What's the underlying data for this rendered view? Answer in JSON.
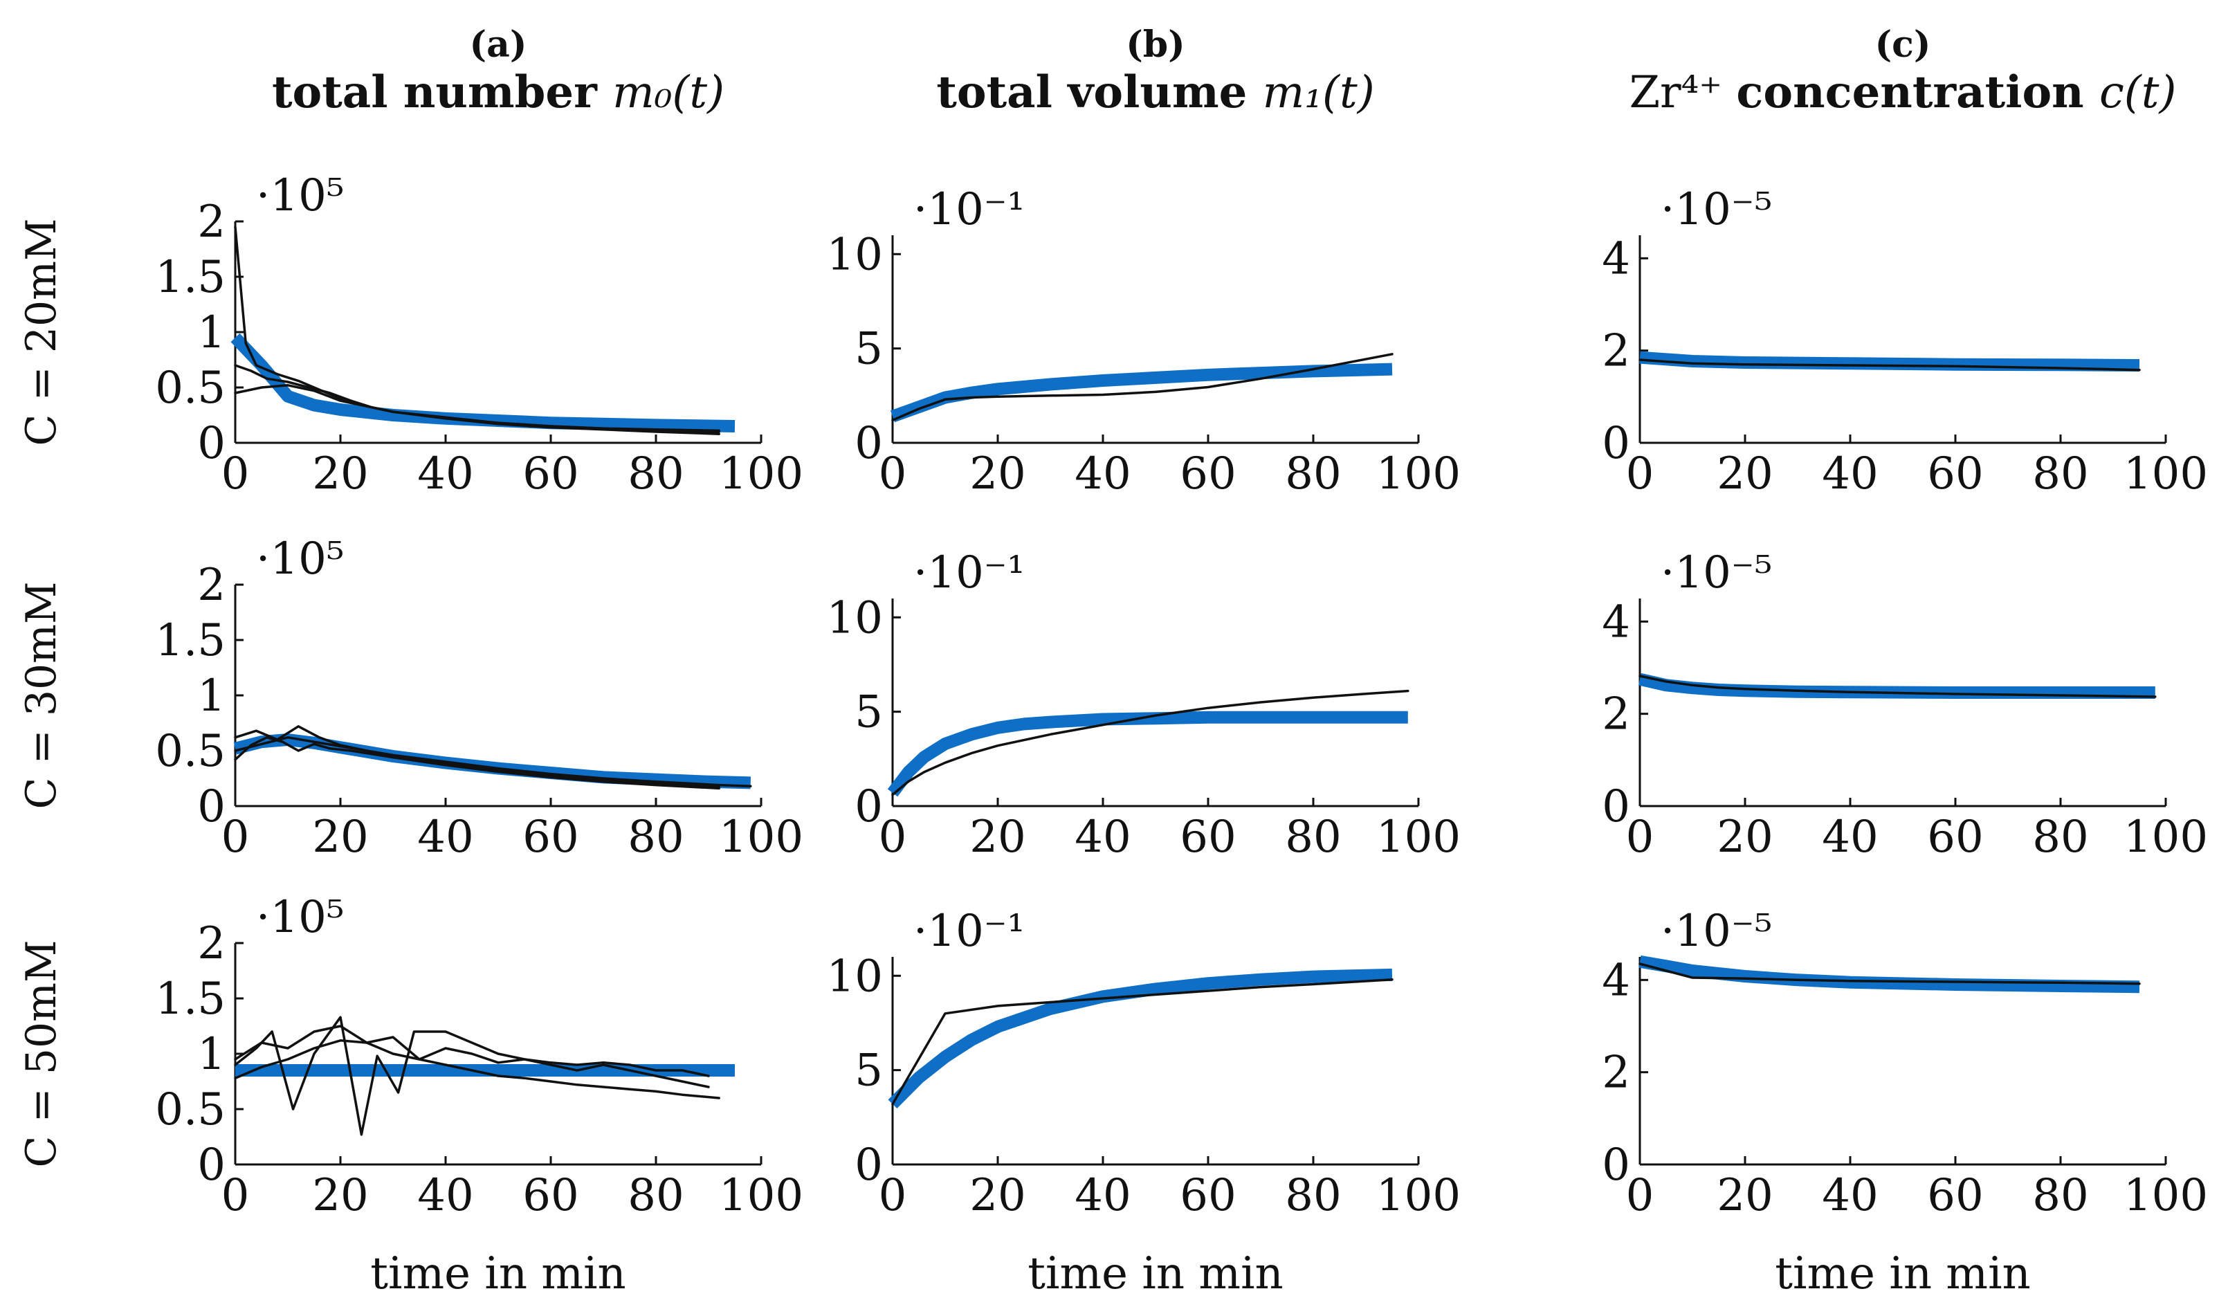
{
  "columns": [
    {
      "letter": "(a)",
      "title_bold": "total number",
      "title_math": "m₀(t)"
    },
    {
      "letter": "(b)",
      "title_bold": "total volume",
      "title_math": "m₁(t)"
    },
    {
      "letter": "(c)",
      "title_pre": "Zr⁴⁺",
      "title_bold": "concentration",
      "title_math": "c(t)"
    }
  ],
  "rows": [
    {
      "label": "C = 20mM"
    },
    {
      "label": "C = 30mM"
    },
    {
      "label": "C = 50mM"
    }
  ],
  "xlabel": "time in min",
  "colors": {
    "fit": "#0f6fc6",
    "measured": "#111111"
  },
  "chart_data": [
    {
      "type": "line",
      "title": "total number m₀(t), C = 20mM",
      "xlabel": "time in min",
      "ylabel": "",
      "exponent": "·10⁵",
      "xlim": [
        0,
        100
      ],
      "ylim": [
        0,
        2
      ],
      "xticks": [
        0,
        20,
        40,
        60,
        80,
        100
      ],
      "yticks": [
        0,
        0.5,
        1,
        1.5,
        2
      ],
      "ytick_labels": [
        "0",
        "0.5",
        "1",
        "1.5",
        "2"
      ],
      "series": [
        {
          "name": "fit",
          "role": "fit",
          "x": [
            0,
            5,
            10,
            15,
            20,
            30,
            40,
            50,
            60,
            70,
            80,
            95
          ],
          "y": [
            0.95,
            0.7,
            0.42,
            0.34,
            0.3,
            0.25,
            0.22,
            0.2,
            0.18,
            0.17,
            0.16,
            0.15
          ]
        },
        {
          "name": "measurement 1",
          "role": "measured",
          "x": [
            0,
            2,
            4,
            8,
            12,
            16,
            20,
            25,
            30,
            40,
            50,
            60,
            70,
            80,
            92
          ],
          "y": [
            1.95,
            0.9,
            0.7,
            0.62,
            0.56,
            0.48,
            0.4,
            0.33,
            0.28,
            0.22,
            0.18,
            0.15,
            0.13,
            0.11,
            0.1
          ]
        },
        {
          "name": "measurement 2",
          "role": "measured",
          "x": [
            0,
            3,
            6,
            10,
            14,
            18,
            22,
            26,
            30,
            40,
            50,
            60,
            70,
            80,
            92
          ],
          "y": [
            0.7,
            0.65,
            0.58,
            0.55,
            0.5,
            0.45,
            0.38,
            0.32,
            0.28,
            0.22,
            0.17,
            0.14,
            0.12,
            0.1,
            0.08
          ]
        },
        {
          "name": "measurement 3",
          "role": "measured",
          "x": [
            0,
            5,
            10,
            15,
            20,
            25,
            30,
            40,
            50,
            60,
            70,
            80,
            92
          ],
          "y": [
            0.45,
            0.5,
            0.52,
            0.47,
            0.38,
            0.33,
            0.28,
            0.23,
            0.18,
            0.15,
            0.13,
            0.12,
            0.11
          ]
        }
      ]
    },
    {
      "type": "line",
      "title": "total volume m₁(t), C = 20mM",
      "xlabel": "time in min",
      "ylabel": "",
      "exponent": "·10⁻¹",
      "xlim": [
        0,
        100
      ],
      "ylim": [
        0,
        11
      ],
      "xticks": [
        0,
        20,
        40,
        60,
        80,
        100
      ],
      "yticks": [
        0,
        5,
        10
      ],
      "ytick_labels": [
        "0",
        "5",
        "10"
      ],
      "series": [
        {
          "name": "fit",
          "role": "fit",
          "x": [
            0,
            5,
            10,
            15,
            20,
            30,
            40,
            50,
            60,
            70,
            80,
            95
          ],
          "y": [
            1.4,
            1.9,
            2.4,
            2.65,
            2.85,
            3.1,
            3.3,
            3.45,
            3.6,
            3.7,
            3.8,
            3.9
          ]
        },
        {
          "name": "measurement",
          "role": "measured",
          "x": [
            0,
            5,
            10,
            15,
            20,
            30,
            40,
            50,
            60,
            70,
            80,
            95
          ],
          "y": [
            1.2,
            1.8,
            2.3,
            2.4,
            2.45,
            2.5,
            2.55,
            2.7,
            2.95,
            3.4,
            3.9,
            4.7
          ]
        }
      ]
    },
    {
      "type": "line",
      "title": "Zr⁴⁺ concentration c(t), C = 20mM",
      "xlabel": "time in min",
      "ylabel": "",
      "exponent": "·10⁻⁵",
      "xlim": [
        0,
        100
      ],
      "ylim": [
        0,
        4.5
      ],
      "xticks": [
        0,
        20,
        40,
        60,
        80,
        100
      ],
      "yticks": [
        0,
        2,
        4
      ],
      "ytick_labels": [
        "0",
        "2",
        "4"
      ],
      "series": [
        {
          "name": "fit",
          "role": "fit",
          "x": [
            0,
            10,
            20,
            40,
            60,
            80,
            95
          ],
          "y": [
            1.85,
            1.77,
            1.74,
            1.72,
            1.7,
            1.69,
            1.68
          ]
        },
        {
          "name": "measurement",
          "role": "measured",
          "x": [
            0,
            10,
            20,
            40,
            60,
            80,
            95
          ],
          "y": [
            1.8,
            1.72,
            1.7,
            1.68,
            1.66,
            1.62,
            1.58
          ]
        }
      ]
    },
    {
      "type": "line",
      "title": "total number m₀(t), C = 30mM",
      "xlabel": "time in min",
      "ylabel": "",
      "exponent": "·10⁵",
      "xlim": [
        0,
        100
      ],
      "ylim": [
        0,
        2
      ],
      "xticks": [
        0,
        20,
        40,
        60,
        80,
        100
      ],
      "yticks": [
        0,
        0.5,
        1,
        1.5,
        2
      ],
      "ytick_labels": [
        "0",
        "0.5",
        "1",
        "1.5",
        "2"
      ],
      "series": [
        {
          "name": "fit",
          "role": "fit",
          "x": [
            0,
            5,
            10,
            15,
            20,
            30,
            40,
            50,
            60,
            70,
            80,
            90,
            98
          ],
          "y": [
            0.52,
            0.58,
            0.6,
            0.57,
            0.53,
            0.45,
            0.39,
            0.34,
            0.3,
            0.26,
            0.24,
            0.22,
            0.21
          ]
        },
        {
          "name": "measurement 1",
          "role": "measured",
          "x": [
            0,
            4,
            8,
            12,
            16,
            20,
            25,
            30,
            40,
            50,
            60,
            70,
            80,
            92
          ],
          "y": [
            0.62,
            0.68,
            0.6,
            0.72,
            0.62,
            0.55,
            0.5,
            0.45,
            0.38,
            0.32,
            0.27,
            0.23,
            0.2,
            0.17
          ]
        },
        {
          "name": "measurement 2",
          "role": "measured",
          "x": [
            0,
            3,
            6,
            9,
            12,
            15,
            18,
            22,
            26,
            30,
            40,
            50,
            60,
            70,
            80,
            92
          ],
          "y": [
            0.42,
            0.55,
            0.62,
            0.58,
            0.5,
            0.56,
            0.52,
            0.5,
            0.47,
            0.44,
            0.37,
            0.31,
            0.26,
            0.22,
            0.19,
            0.16
          ]
        },
        {
          "name": "measurement 3",
          "role": "measured",
          "x": [
            0,
            5,
            10,
            15,
            20,
            30,
            40,
            50,
            60,
            70,
            80,
            92,
            98
          ],
          "y": [
            0.5,
            0.56,
            0.62,
            0.58,
            0.54,
            0.46,
            0.4,
            0.34,
            0.29,
            0.25,
            0.22,
            0.19,
            0.18
          ]
        }
      ]
    },
    {
      "type": "line",
      "title": "total volume m₁(t), C = 30mM",
      "xlabel": "time in min",
      "ylabel": "",
      "exponent": "·10⁻¹",
      "xlim": [
        0,
        100
      ],
      "ylim": [
        0,
        11
      ],
      "xticks": [
        0,
        20,
        40,
        60,
        80,
        100
      ],
      "yticks": [
        0,
        5,
        10
      ],
      "ytick_labels": [
        "0",
        "5",
        "10"
      ],
      "series": [
        {
          "name": "fit",
          "role": "fit",
          "x": [
            0,
            3,
            6,
            10,
            15,
            20,
            25,
            30,
            40,
            50,
            60,
            70,
            80,
            90,
            98
          ],
          "y": [
            0.7,
            1.8,
            2.6,
            3.3,
            3.8,
            4.15,
            4.35,
            4.45,
            4.6,
            4.65,
            4.7,
            4.7,
            4.7,
            4.7,
            4.7
          ]
        },
        {
          "name": "measurement",
          "role": "measured",
          "x": [
            0,
            3,
            6,
            10,
            15,
            20,
            30,
            40,
            50,
            60,
            70,
            80,
            90,
            98
          ],
          "y": [
            0.6,
            1.3,
            1.8,
            2.3,
            2.8,
            3.2,
            3.8,
            4.3,
            4.8,
            5.2,
            5.5,
            5.75,
            5.95,
            6.1
          ]
        }
      ]
    },
    {
      "type": "line",
      "title": "Zr⁴⁺ concentration c(t), C = 30mM",
      "xlabel": "time in min",
      "ylabel": "",
      "exponent": "·10⁻⁵",
      "xlim": [
        0,
        100
      ],
      "ylim": [
        0,
        4.5
      ],
      "xticks": [
        0,
        20,
        40,
        60,
        80,
        100
      ],
      "yticks": [
        0,
        2,
        4
      ],
      "ytick_labels": [
        "0",
        "2",
        "4"
      ],
      "series": [
        {
          "name": "fit",
          "role": "fit",
          "x": [
            0,
            5,
            10,
            15,
            20,
            30,
            40,
            60,
            80,
            98
          ],
          "y": [
            2.75,
            2.62,
            2.56,
            2.52,
            2.5,
            2.48,
            2.47,
            2.46,
            2.46,
            2.46
          ]
        },
        {
          "name": "measurement",
          "role": "measured",
          "x": [
            0,
            5,
            10,
            15,
            20,
            30,
            40,
            60,
            80,
            98
          ],
          "y": [
            2.82,
            2.7,
            2.62,
            2.57,
            2.54,
            2.5,
            2.47,
            2.43,
            2.4,
            2.37
          ]
        }
      ]
    },
    {
      "type": "line",
      "title": "total number m₀(t), C = 50mM",
      "xlabel": "time in min",
      "ylabel": "",
      "exponent": "·10⁵",
      "xlim": [
        0,
        100
      ],
      "ylim": [
        0,
        2
      ],
      "xticks": [
        0,
        20,
        40,
        60,
        80,
        100
      ],
      "yticks": [
        0,
        0.5,
        1,
        1.5,
        2
      ],
      "ytick_labels": [
        "0",
        "0.5",
        "1",
        "1.5",
        "2"
      ],
      "series": [
        {
          "name": "fit",
          "role": "fit",
          "x": [
            0,
            95
          ],
          "y": [
            0.85,
            0.85
          ]
        },
        {
          "name": "measurement 1",
          "role": "measured",
          "x": [
            0,
            4,
            7,
            11,
            15,
            20,
            24,
            27,
            31,
            34,
            37,
            40,
            45,
            50,
            55,
            60,
            65,
            70,
            75,
            80,
            85,
            90
          ],
          "y": [
            0.9,
            1.05,
            1.2,
            0.5,
            1.0,
            1.33,
            0.27,
            0.98,
            0.65,
            1.2,
            1.2,
            1.2,
            1.1,
            1.0,
            0.95,
            0.92,
            0.9,
            0.92,
            0.9,
            0.85,
            0.85,
            0.8
          ]
        },
        {
          "name": "measurement 2",
          "role": "measured",
          "x": [
            0,
            5,
            10,
            15,
            20,
            25,
            30,
            35,
            40,
            45,
            50,
            55,
            60,
            65,
            70,
            75,
            80,
            85,
            90
          ],
          "y": [
            0.95,
            1.1,
            1.05,
            1.2,
            1.25,
            1.1,
            1.15,
            0.95,
            1.05,
            1.0,
            0.92,
            0.95,
            0.9,
            0.85,
            0.9,
            0.85,
            0.8,
            0.75,
            0.7
          ]
        },
        {
          "name": "measurement 3",
          "role": "measured",
          "x": [
            0,
            5,
            10,
            15,
            20,
            25,
            30,
            35,
            40,
            45,
            50,
            55,
            60,
            65,
            70,
            75,
            80,
            85,
            92
          ],
          "y": [
            0.78,
            0.88,
            0.95,
            1.05,
            1.12,
            1.1,
            1.0,
            0.95,
            0.9,
            0.85,
            0.8,
            0.78,
            0.75,
            0.72,
            0.7,
            0.68,
            0.66,
            0.63,
            0.6
          ]
        }
      ]
    },
    {
      "type": "line",
      "title": "total volume m₁(t), C = 50mM",
      "xlabel": "time in min",
      "ylabel": "",
      "exponent": "·10⁻¹",
      "xlim": [
        0,
        100
      ],
      "ylim": [
        0,
        11
      ],
      "xticks": [
        0,
        20,
        40,
        60,
        80,
        100
      ],
      "yticks": [
        0,
        5,
        10
      ],
      "ytick_labels": [
        "0",
        "5",
        "10"
      ],
      "series": [
        {
          "name": "fit",
          "role": "fit",
          "x": [
            0,
            5,
            10,
            15,
            20,
            30,
            40,
            50,
            60,
            70,
            80,
            95
          ],
          "y": [
            3.2,
            4.6,
            5.7,
            6.6,
            7.3,
            8.25,
            8.9,
            9.3,
            9.6,
            9.8,
            9.95,
            10.05
          ]
        },
        {
          "name": "measurement",
          "role": "measured",
          "x": [
            0,
            10,
            20,
            30,
            40,
            50,
            60,
            70,
            80,
            95
          ],
          "y": [
            3.2,
            8.0,
            8.4,
            8.6,
            8.8,
            9.0,
            9.2,
            9.4,
            9.55,
            9.8
          ]
        }
      ]
    },
    {
      "type": "line",
      "title": "Zr⁴⁺ concentration c(t), C = 50mM",
      "xlabel": "time in min",
      "ylabel": "",
      "exponent": "·10⁻⁵",
      "xlim": [
        0,
        100
      ],
      "ylim": [
        0,
        4.5
      ],
      "xticks": [
        0,
        20,
        40,
        60,
        80,
        100
      ],
      "yticks": [
        0,
        2,
        4
      ],
      "ytick_labels": [
        "0",
        "2",
        "4"
      ],
      "series": [
        {
          "name": "fit",
          "role": "fit",
          "x": [
            0,
            5,
            10,
            20,
            30,
            40,
            60,
            80,
            95
          ],
          "y": [
            4.4,
            4.3,
            4.2,
            4.08,
            4.0,
            3.95,
            3.9,
            3.87,
            3.85
          ]
        },
        {
          "name": "measurement",
          "role": "measured",
          "x": [
            0,
            5,
            10,
            20,
            30,
            40,
            60,
            80,
            95
          ],
          "y": [
            4.35,
            4.2,
            4.05,
            4.03,
            4.0,
            3.98,
            3.96,
            3.94,
            3.92
          ]
        }
      ]
    }
  ]
}
